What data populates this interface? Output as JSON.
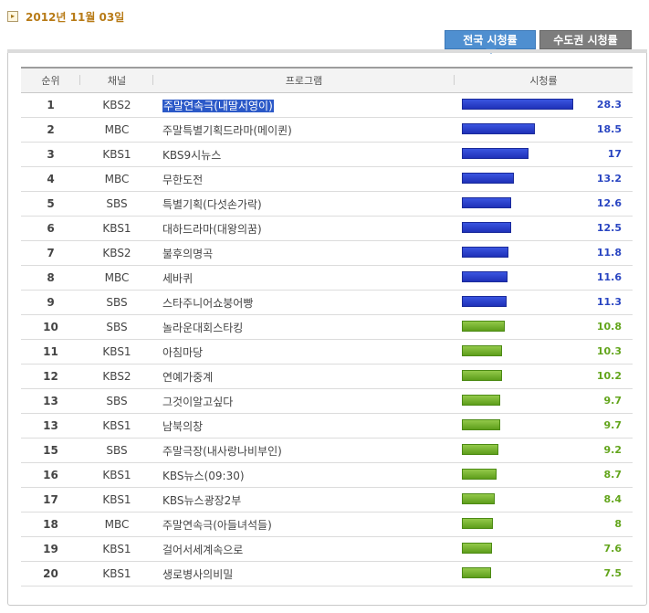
{
  "date": "2012년 11월 03일",
  "tabs": {
    "national": "전국 시청률",
    "capital": "수도권 시청률"
  },
  "columns": {
    "rank": "순위",
    "channel": "채널",
    "program": "프로그램",
    "rating": "시청률"
  },
  "colors": {
    "top_bar": "#2338c8",
    "other_bar": "#6fb22a",
    "top_text": "#2a46c2",
    "other_text": "#63a51c",
    "date": "#b87b17"
  },
  "max_rating": 28.3,
  "rows": [
    {
      "rank": "1",
      "channel": "KBS2",
      "program": "주말연속극(내딸서영이)",
      "rating": "28.3",
      "highlight": true,
      "group": "blue"
    },
    {
      "rank": "2",
      "channel": "MBC",
      "program": "주말특별기획드라마(메이퀸)",
      "rating": "18.5",
      "group": "blue"
    },
    {
      "rank": "3",
      "channel": "KBS1",
      "program": "KBS9시뉴스",
      "rating": "17",
      "group": "blue"
    },
    {
      "rank": "4",
      "channel": "MBC",
      "program": "무한도전",
      "rating": "13.2",
      "group": "blue"
    },
    {
      "rank": "5",
      "channel": "SBS",
      "program": "특별기획(다섯손가락)",
      "rating": "12.6",
      "group": "blue"
    },
    {
      "rank": "6",
      "channel": "KBS1",
      "program": "대하드라마(대왕의꿈)",
      "rating": "12.5",
      "group": "blue"
    },
    {
      "rank": "7",
      "channel": "KBS2",
      "program": "불후의명곡",
      "rating": "11.8",
      "group": "blue"
    },
    {
      "rank": "8",
      "channel": "MBC",
      "program": "세바퀴",
      "rating": "11.6",
      "group": "blue"
    },
    {
      "rank": "9",
      "channel": "SBS",
      "program": "스타주니어쇼붕어빵",
      "rating": "11.3",
      "group": "blue"
    },
    {
      "rank": "10",
      "channel": "SBS",
      "program": "놀라운대회스타킹",
      "rating": "10.8",
      "group": "green"
    },
    {
      "rank": "11",
      "channel": "KBS1",
      "program": "아침마당",
      "rating": "10.3",
      "group": "green"
    },
    {
      "rank": "12",
      "channel": "KBS2",
      "program": "연예가중계",
      "rating": "10.2",
      "group": "green"
    },
    {
      "rank": "13",
      "channel": "SBS",
      "program": "그것이알고싶다",
      "rating": "9.7",
      "group": "green"
    },
    {
      "rank": "13",
      "channel": "KBS1",
      "program": "남북의창",
      "rating": "9.7",
      "group": "green"
    },
    {
      "rank": "15",
      "channel": "SBS",
      "program": "주말극장(내사랑나비부인)",
      "rating": "9.2",
      "group": "green"
    },
    {
      "rank": "16",
      "channel": "KBS1",
      "program": "KBS뉴스(09:30)",
      "rating": "8.7",
      "group": "green"
    },
    {
      "rank": "17",
      "channel": "KBS1",
      "program": "KBS뉴스광장2부",
      "rating": "8.4",
      "group": "green"
    },
    {
      "rank": "18",
      "channel": "MBC",
      "program": "주말연속극(아들녀석들)",
      "rating": "8",
      "group": "green"
    },
    {
      "rank": "19",
      "channel": "KBS1",
      "program": "걸어서세계속으로",
      "rating": "7.6",
      "group": "green"
    },
    {
      "rank": "20",
      "channel": "KBS1",
      "program": "생로병사의비밀",
      "rating": "7.5",
      "group": "green"
    }
  ]
}
